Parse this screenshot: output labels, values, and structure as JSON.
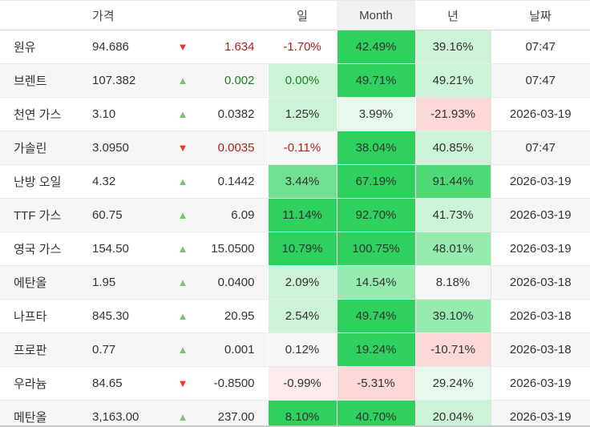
{
  "table": {
    "headers": {
      "name": "",
      "price": "가격",
      "arrow": "",
      "change": "",
      "day": "일",
      "month": "Month",
      "year": "년",
      "date": "날짜"
    },
    "rows": [
      {
        "name": "원유",
        "price": "94.686",
        "direction": "down",
        "change": "1.634",
        "change_color": "red",
        "day": {
          "value": "-1.70%",
          "bg": "white",
          "color": "red"
        },
        "month": {
          "value": "42.49%",
          "bg": "strong_green"
        },
        "year": {
          "value": "39.16%",
          "bg": "light_green"
        },
        "date": "07:47"
      },
      {
        "name": "브렌트",
        "price": "107.382",
        "direction": "up",
        "change": "0.002",
        "change_color": "green",
        "day": {
          "value": "0.00%",
          "bg": "light_green",
          "color": "green"
        },
        "month": {
          "value": "49.71%",
          "bg": "strong_green"
        },
        "year": {
          "value": "49.21%",
          "bg": "light_green"
        },
        "date": "07:47"
      },
      {
        "name": "천연 가스",
        "price": "3.10",
        "direction": "up",
        "change": "0.0382",
        "change_color": "default",
        "day": {
          "value": "1.25%",
          "bg": "light_green"
        },
        "month": {
          "value": "3.99%",
          "bg": "pale_green"
        },
        "year": {
          "value": "-21.93%",
          "bg": "light_red"
        },
        "date": "2026-03-19"
      },
      {
        "name": "가솔린",
        "price": "3.0950",
        "direction": "down",
        "change": "0.0035",
        "change_color": "red",
        "day": {
          "value": "-0.11%",
          "bg": "white",
          "color": "red"
        },
        "month": {
          "value": "38.04%",
          "bg": "strong_green"
        },
        "year": {
          "value": "40.85%",
          "bg": "light_green"
        },
        "date": "07:47"
      },
      {
        "name": "난방 오일",
        "price": "4.32",
        "direction": "up",
        "change": "0.1442",
        "change_color": "default",
        "day": {
          "value": "3.44%",
          "bg": "green3"
        },
        "month": {
          "value": "67.19%",
          "bg": "strong_green"
        },
        "year": {
          "value": "91.44%",
          "bg": "medium_green"
        },
        "date": "2026-03-19"
      },
      {
        "name": "TTF 가스",
        "price": "60.75",
        "direction": "up",
        "change": "6.09",
        "change_color": "default",
        "day": {
          "value": "11.14%",
          "bg": "strong_green"
        },
        "month": {
          "value": "92.70%",
          "bg": "strong_green"
        },
        "year": {
          "value": "41.73%",
          "bg": "light_green"
        },
        "date": "2026-03-19"
      },
      {
        "name": "영국 가스",
        "price": "154.50",
        "direction": "up",
        "change": "15.0500",
        "change_color": "default",
        "day": {
          "value": "10.79%",
          "bg": "strong_green"
        },
        "month": {
          "value": "100.75%",
          "bg": "strong_green"
        },
        "year": {
          "value": "48.01%",
          "bg": "green3b"
        },
        "date": "2026-03-19"
      },
      {
        "name": "에탄올",
        "price": "1.95",
        "direction": "up",
        "change": "0.0400",
        "change_color": "default",
        "day": {
          "value": "2.09%",
          "bg": "light_green"
        },
        "month": {
          "value": "14.54%",
          "bg": "green3b"
        },
        "year": {
          "value": "8.18%",
          "bg": "white"
        },
        "date": "2026-03-18"
      },
      {
        "name": "나프타",
        "price": "845.30",
        "direction": "up",
        "change": "20.95",
        "change_color": "default",
        "day": {
          "value": "2.54%",
          "bg": "light_green"
        },
        "month": {
          "value": "49.74%",
          "bg": "strong_green"
        },
        "year": {
          "value": "39.10%",
          "bg": "green3b"
        },
        "date": "2026-03-18"
      },
      {
        "name": "프로판",
        "price": "0.77",
        "direction": "up",
        "change": "0.001",
        "change_color": "default",
        "day": {
          "value": "0.12%",
          "bg": "white"
        },
        "month": {
          "value": "19.24%",
          "bg": "strong_green"
        },
        "year": {
          "value": "-10.71%",
          "bg": "light_red"
        },
        "date": "2026-03-18"
      },
      {
        "name": "우라늄",
        "price": "84.65",
        "direction": "down",
        "change": "-0.8500",
        "change_color": "default",
        "day": {
          "value": "-0.99%",
          "bg": "pale_red"
        },
        "month": {
          "value": "-5.31%",
          "bg": "light_red"
        },
        "year": {
          "value": "29.24%",
          "bg": "pale_green"
        },
        "date": "2026-03-19"
      },
      {
        "name": "메탄올",
        "price": "3,163.00",
        "direction": "up",
        "change": "237.00",
        "change_color": "default",
        "day": {
          "value": "8.10%",
          "bg": "strong_green"
        },
        "month": {
          "value": "40.70%",
          "bg": "strong_green"
        },
        "year": {
          "value": "20.04%",
          "bg": "light_green"
        },
        "date": "2026-03-19"
      }
    ]
  },
  "icons": {
    "up_triangle": "▲",
    "down_triangle": "▼"
  },
  "colors": {
    "strong_green": "#2ed05e",
    "medium_green": "#4fd976",
    "green3": "#6fe090",
    "green3b": "#95eaae",
    "light_green": "#cdf3d7",
    "pale_green": "#e6f9ec",
    "light_red": "#fbd7d7",
    "pale_red": "#fdeaea",
    "white": "#ffffff",
    "row_stripe": "#f6f6f6",
    "text_red": "#ab231b",
    "text_green": "#1b7e24",
    "text_default": "#333333",
    "arrow_up": "#77c66a",
    "arrow_down": "#ee3424",
    "month_header_bg": "#f1f1f1"
  }
}
